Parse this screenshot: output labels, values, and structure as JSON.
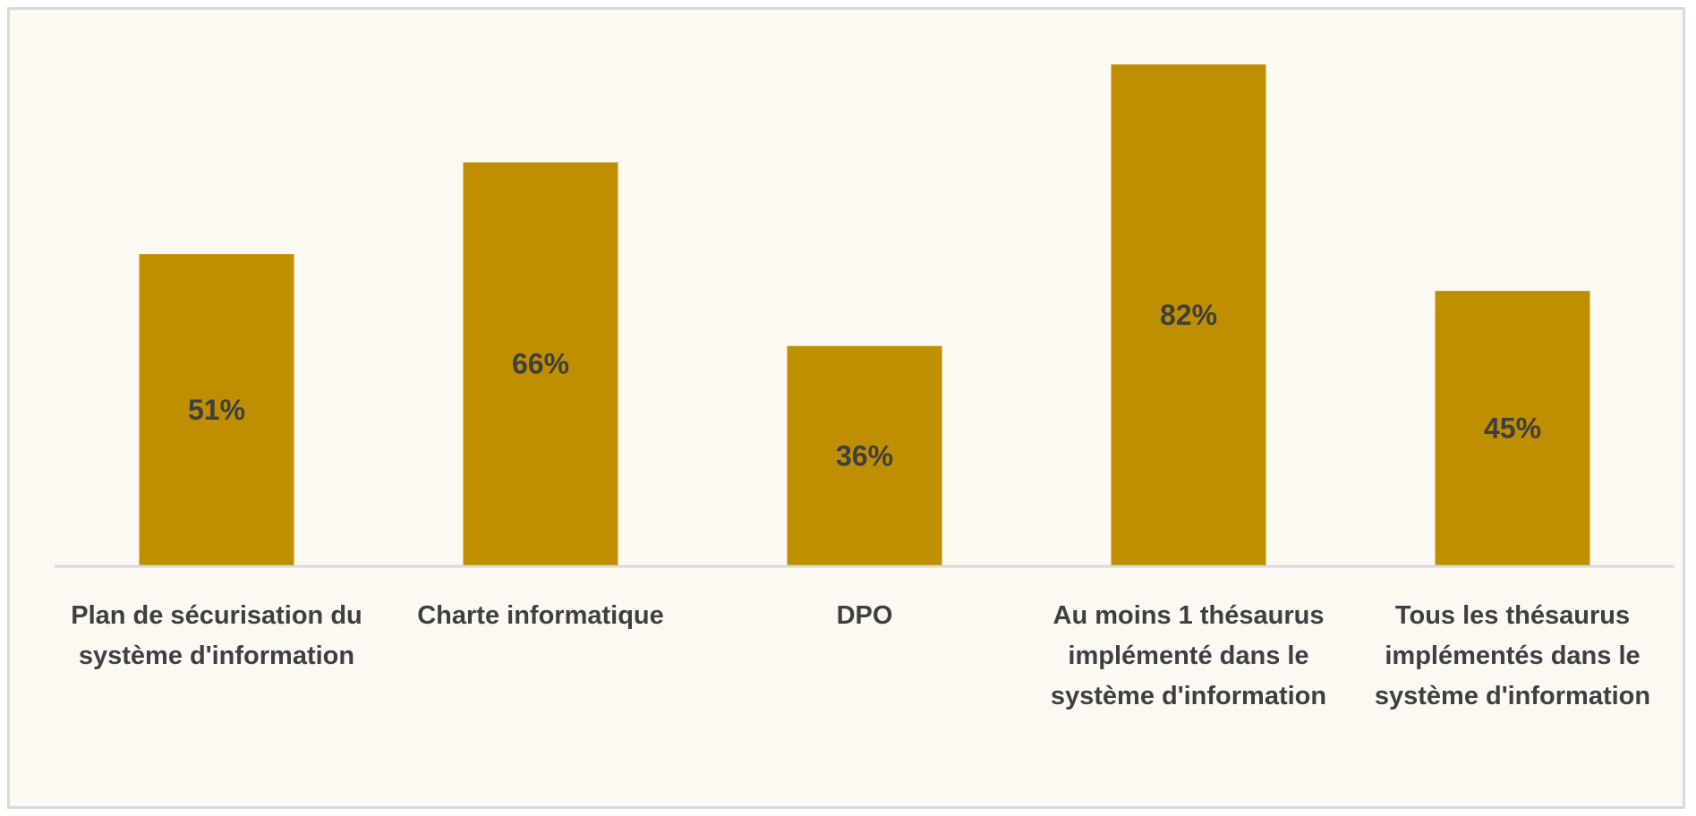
{
  "chart_data": {
    "type": "bar",
    "categories": [
      "Plan de sécurisation du système d'information",
      "Charte informatique",
      "DPO",
      "Au moins 1 thésaurus implémenté dans le système d'information",
      "Tous les thésaurus implémentés dans le système d'information"
    ],
    "values": [
      51,
      66,
      36,
      82,
      45
    ],
    "value_labels": [
      "51%",
      "66%",
      "36%",
      "82%",
      "45%"
    ],
    "color": "#bf8f00"
  }
}
